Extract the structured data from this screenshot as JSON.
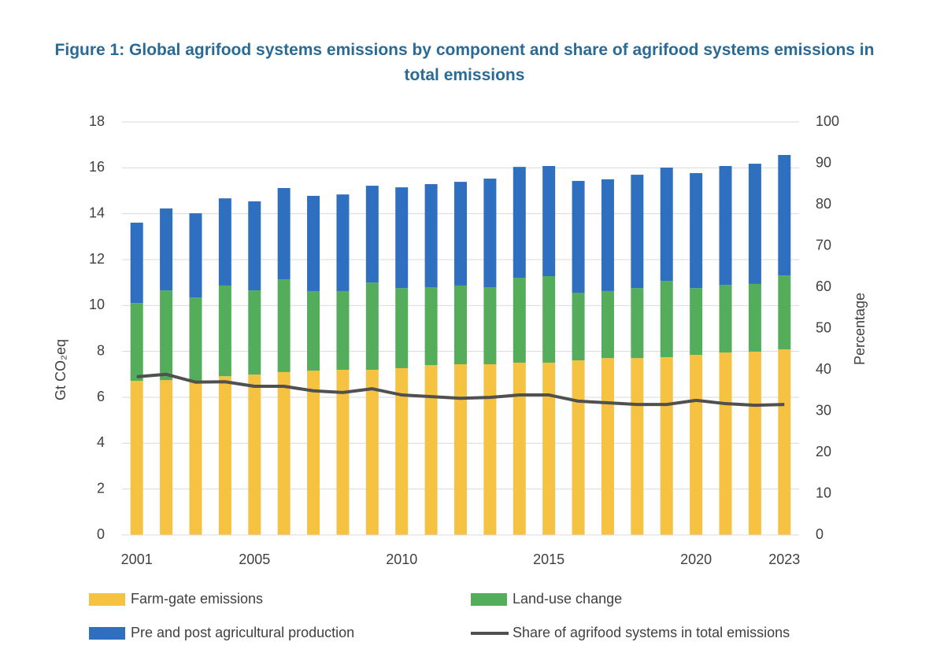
{
  "chart_data": {
    "type": "bar",
    "stacked": true,
    "title": "Figure 1: Global agrifood systems emissions by component and share of agrifood systems emissions in total emissions",
    "y_label": "Gt CO₂eq",
    "y2_label": "Percentage",
    "categories": [
      "2001",
      null,
      null,
      null,
      "2005",
      null,
      null,
      null,
      null,
      "2010",
      null,
      null,
      null,
      null,
      "2015",
      null,
      null,
      null,
      null,
      "2020",
      null,
      null,
      "2023"
    ],
    "series": [
      {
        "name": "Farm-gate emissions",
        "color": "#f5c242",
        "values": [
          6.72,
          6.75,
          6.7,
          6.92,
          6.99,
          7.1,
          7.16,
          7.2,
          7.2,
          7.27,
          7.4,
          7.44,
          7.44,
          7.51,
          7.51,
          7.61,
          7.71,
          7.71,
          7.75,
          7.85,
          7.95,
          7.99,
          8.09
        ]
      },
      {
        "name": "Land-use change",
        "color": "#53ad5b",
        "values": [
          3.39,
          3.91,
          3.65,
          3.95,
          3.67,
          4.04,
          3.47,
          3.43,
          3.8,
          3.49,
          3.4,
          3.43,
          3.36,
          3.7,
          3.77,
          2.95,
          2.92,
          3.05,
          3.32,
          2.91,
          2.95,
          2.95,
          3.22
        ]
      },
      {
        "name": "Pre and post agricultural production",
        "color": "#2f6fc0",
        "values": [
          3.5,
          3.57,
          3.67,
          3.8,
          3.88,
          3.98,
          4.15,
          4.21,
          4.22,
          4.39,
          4.49,
          4.52,
          4.73,
          4.83,
          4.8,
          4.87,
          4.87,
          4.94,
          4.94,
          5.01,
          5.18,
          5.24,
          5.25
        ]
      },
      {
        "name": "Share of agrifood systems in total emissions",
        "color": "#505050",
        "type": "line",
        "axis": "y2",
        "values": [
          38.3,
          38.9,
          37.0,
          37.1,
          36.0,
          36.0,
          34.9,
          34.5,
          35.4,
          33.9,
          33.5,
          33.1,
          33.3,
          33.9,
          33.9,
          32.4,
          32.0,
          31.6,
          31.6,
          32.6,
          31.8,
          31.4,
          31.6
        ]
      }
    ],
    "ylim": [
      0,
      18
    ],
    "yticks": [
      0,
      2,
      4,
      6,
      8,
      10,
      12,
      14,
      16,
      18
    ],
    "y2lim": [
      0,
      100
    ],
    "y2ticks": [
      0,
      10,
      20,
      30,
      40,
      50,
      60,
      70,
      80,
      90,
      100
    ],
    "grid": true,
    "legend": "bottom"
  }
}
